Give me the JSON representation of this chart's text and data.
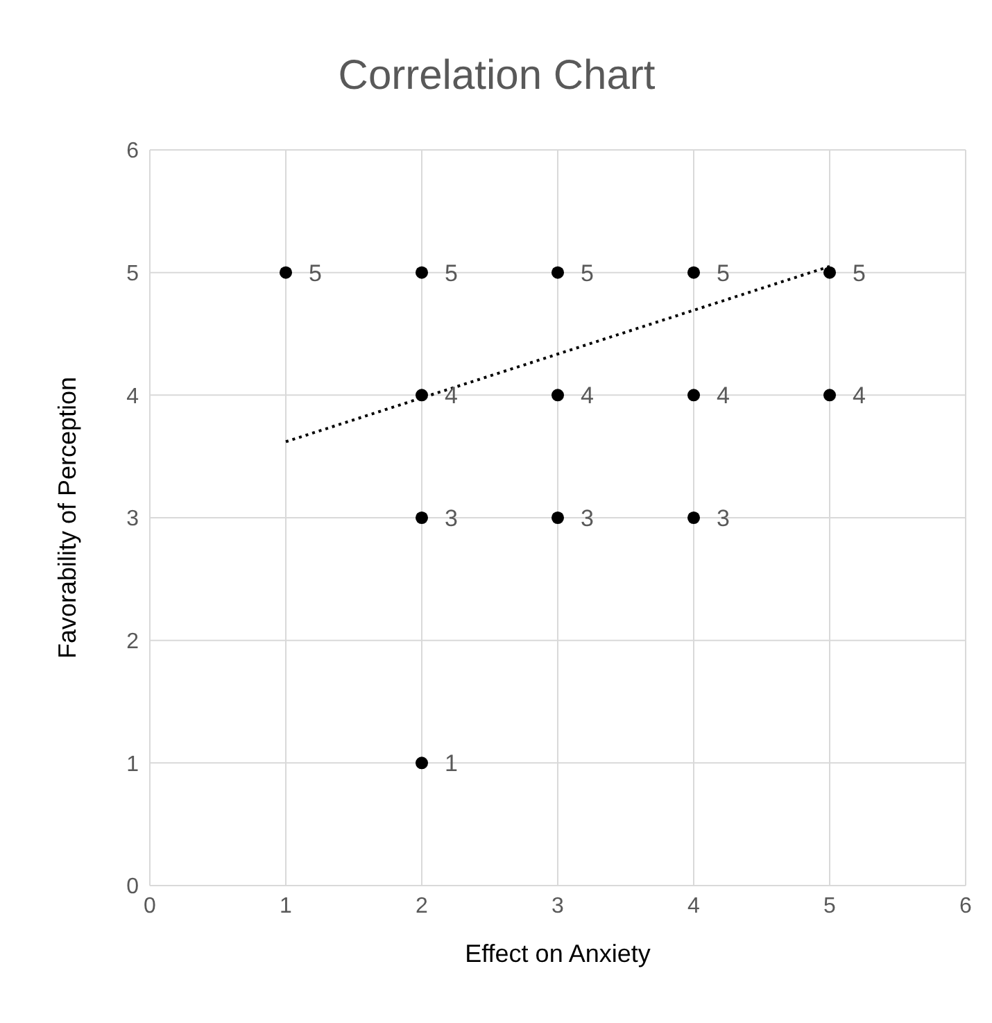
{
  "chart_data": {
    "type": "scatter",
    "title": "Correlation Chart",
    "xlabel": "Effect on Anxiety",
    "ylabel": "Favorability of Perception",
    "x": [
      1,
      2,
      3,
      4,
      5,
      2,
      3,
      4,
      5,
      2,
      3,
      4,
      2
    ],
    "series": [
      {
        "color": "#000000",
        "values": [
          5,
          5,
          5,
          5,
          5,
          4,
          4,
          4,
          4,
          3,
          3,
          3,
          1
        ],
        "value_labels": [
          "5",
          "5",
          "5",
          "5",
          "5",
          "4",
          "4",
          "4",
          "4",
          "3",
          "3",
          "3",
          "1"
        ]
      },
      {
        "type": "line",
        "color": "#000000",
        "x": [
          1,
          5
        ],
        "values": [
          3.62,
          5.05
        ],
        "line_style": "dotted",
        "marker": "none"
      }
    ],
    "marker": "circle",
    "xlim": [
      0,
      6
    ],
    "xticks": [
      0,
      1,
      2,
      3,
      4,
      5,
      6
    ],
    "ylim": [
      0,
      6
    ],
    "yticks": [
      0,
      1,
      2,
      3,
      4,
      5,
      6
    ],
    "grid": true,
    "legend": false
  }
}
